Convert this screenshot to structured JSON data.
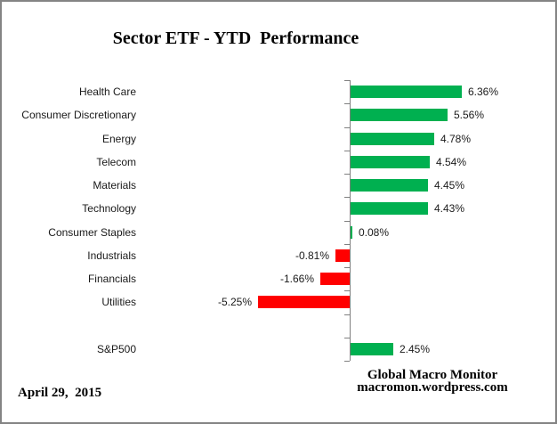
{
  "window": {
    "background_color": "#ffffff",
    "border_color": "#848484"
  },
  "chart_data": {
    "type": "bar",
    "orientation": "horizontal",
    "title": "Sector ETF - YTD  Performance",
    "categories": [
      "Health Care",
      "Consumer Discretionary",
      "Energy",
      "Telecom",
      "Materials",
      "Technology",
      "Consumer Staples",
      "Industrials",
      "Financials",
      "Utilities",
      "",
      "S&P500"
    ],
    "values": [
      6.36,
      5.56,
      4.78,
      4.54,
      4.45,
      4.43,
      0.08,
      -0.81,
      -1.66,
      -5.25,
      null,
      2.45
    ],
    "value_labels": [
      "6.36%",
      "5.56%",
      "4.78%",
      "4.54%",
      "4.45%",
      "4.43%",
      "0.08%",
      "-0.81%",
      "-1.66%",
      "-5.25%",
      "",
      "2.45%"
    ],
    "positive_color": "#00B050",
    "negative_color": "#FF0000",
    "axis_color": "#808080",
    "xlabel": "",
    "ylabel": "",
    "grid": false,
    "legend_position": "none",
    "value_unit": "percent",
    "baseline": 0
  },
  "footer": {
    "date": "April 29,  2015",
    "source_line1": "Global Macro Monitor",
    "source_line2": "macromon.wordpress.com"
  }
}
